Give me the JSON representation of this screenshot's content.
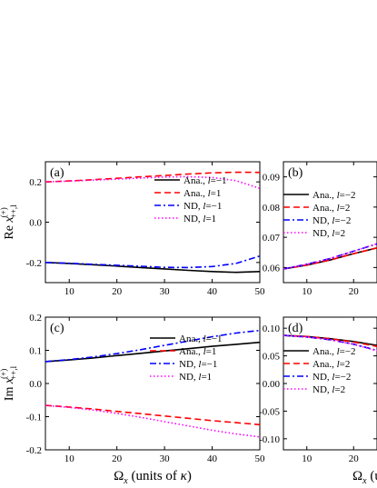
{
  "chart_data": [
    {
      "panel": "(a)",
      "type": "line",
      "ylabel": "Re x",
      "ylabel_sup": "(+)",
      "ylabel_sub": "++,l",
      "xlabel": "",
      "xlim": [
        5,
        50
      ],
      "ylim": [
        -0.3,
        0.3
      ],
      "xticks": [
        "10",
        "20",
        "30",
        "40",
        "50"
      ],
      "xtick_values": [
        10,
        20,
        30,
        40,
        50
      ],
      "yticks": [
        "-0.2",
        "0.0",
        "0.2"
      ],
      "ytick_values": [
        -0.2,
        0.0,
        0.2
      ],
      "legend_placement": "center-right",
      "series": [
        {
          "name": "Ana., l=−1",
          "prefix": "Ana., ",
          "lval": "=−1",
          "color": "#000000",
          "dash": "solid",
          "x": [
            5,
            10,
            15,
            20,
            25,
            30,
            35,
            40,
            45,
            50
          ],
          "y": [
            -0.2,
            -0.205,
            -0.211,
            -0.218,
            -0.225,
            -0.232,
            -0.239,
            -0.245,
            -0.249,
            -0.245
          ]
        },
        {
          "name": "Ana., l=1",
          "prefix": "Ana., ",
          "lval": "=1",
          "color": "#ff0000",
          "dash": "dashed",
          "x": [
            5,
            10,
            15,
            20,
            25,
            30,
            35,
            40,
            45,
            50
          ],
          "y": [
            0.2,
            0.205,
            0.211,
            0.218,
            0.225,
            0.232,
            0.239,
            0.245,
            0.248,
            0.247
          ]
        },
        {
          "name": "ND, l=−1",
          "prefix": "ND, ",
          "lval": "=−1",
          "color": "#0000ff",
          "dash": "dashdot",
          "x": [
            5,
            10,
            15,
            20,
            25,
            30,
            35,
            40,
            45,
            50
          ],
          "y": [
            -0.2,
            -0.204,
            -0.209,
            -0.214,
            -0.219,
            -0.224,
            -0.225,
            -0.22,
            -0.205,
            -0.168
          ]
        },
        {
          "name": "ND, l=1",
          "prefix": "ND, ",
          "lval": "=1",
          "color": "#ff00ff",
          "dash": "dotted",
          "x": [
            5,
            10,
            15,
            20,
            25,
            30,
            35,
            40,
            45,
            50
          ],
          "y": [
            0.2,
            0.204,
            0.209,
            0.214,
            0.219,
            0.224,
            0.226,
            0.222,
            0.206,
            0.168
          ]
        }
      ]
    },
    {
      "panel": "(b)",
      "type": "line",
      "xlabel": "",
      "xlim": [
        5,
        25
      ],
      "ylim": [
        0.055,
        0.095
      ],
      "xticks": [
        "10",
        "20"
      ],
      "xtick_values": [
        10,
        20
      ],
      "yticks": [
        "0.06",
        "0.07",
        "0.08",
        "0.09"
      ],
      "ytick_values": [
        0.06,
        0.07,
        0.08,
        0.09
      ],
      "legend_placement": "center-right",
      "series": [
        {
          "name": "Ana., l=−2",
          "prefix": "Ana., ",
          "lval": "=−2",
          "color": "#000000",
          "dash": "solid",
          "x": [
            5,
            10,
            15,
            20,
            25
          ],
          "y": [
            0.0595,
            0.0608,
            0.0625,
            0.0646,
            0.0665
          ]
        },
        {
          "name": "Ana., l=2",
          "prefix": "Ana., ",
          "lval": "=2",
          "color": "#ff0000",
          "dash": "dashed",
          "x": [
            5,
            10,
            15,
            20,
            25
          ],
          "y": [
            0.0595,
            0.0608,
            0.0625,
            0.0646,
            0.0665
          ]
        },
        {
          "name": "ND, l=−2",
          "prefix": "ND, ",
          "lval": "=−2",
          "color": "#0000ff",
          "dash": "dashdot",
          "x": [
            5,
            10,
            15,
            20,
            25
          ],
          "y": [
            0.0595,
            0.0611,
            0.063,
            0.0654,
            0.0678
          ]
        },
        {
          "name": "ND, l=2",
          "prefix": "ND, ",
          "lval": "=2",
          "color": "#ff00ff",
          "dash": "dotted",
          "x": [
            5,
            10,
            15,
            20,
            25
          ],
          "y": [
            0.0595,
            0.0611,
            0.063,
            0.0654,
            0.0679
          ]
        }
      ]
    },
    {
      "panel": "(c)",
      "type": "line",
      "ylabel": "Im x",
      "ylabel_sup": "(+)",
      "ylabel_sub": "++,l",
      "xlabel": "Ω",
      "xlabel_sub": "x",
      "xlabel_units": " (units of ",
      "xlabel_kappa": "κ",
      "xlabel_close": ")",
      "xlim": [
        5,
        50
      ],
      "ylim": [
        -0.2,
        0.2
      ],
      "xticks": [
        "10",
        "20",
        "30",
        "40",
        "50"
      ],
      "xtick_values": [
        10,
        20,
        30,
        40,
        50
      ],
      "yticks": [
        "-0.2",
        "-0.1",
        "0.0",
        "0.1",
        "0.2"
      ],
      "ytick_values": [
        -0.2,
        -0.1,
        0.0,
        0.1,
        0.2
      ],
      "legend_placement": "center-right",
      "series": [
        {
          "name": "Ana., l=−1",
          "prefix": "Ana., ",
          "lval": "=−1",
          "color": "#000000",
          "dash": "solid",
          "x": [
            5,
            10,
            15,
            20,
            25,
            30,
            35,
            40,
            45,
            50
          ],
          "y": [
            0.066,
            0.071,
            0.077,
            0.084,
            0.091,
            0.098,
            0.105,
            0.112,
            0.118,
            0.124
          ]
        },
        {
          "name": "Ana., l=1",
          "prefix": "Ana., ",
          "lval": "=1",
          "color": "#ff0000",
          "dash": "dashed",
          "x": [
            5,
            10,
            15,
            20,
            25,
            30,
            35,
            40,
            45,
            50
          ],
          "y": [
            -0.066,
            -0.071,
            -0.077,
            -0.084,
            -0.091,
            -0.098,
            -0.105,
            -0.112,
            -0.118,
            -0.124
          ]
        },
        {
          "name": "ND, l=−1",
          "prefix": "ND, ",
          "lval": "=−1",
          "color": "#0000ff",
          "dash": "dashdot",
          "x": [
            5,
            10,
            15,
            20,
            25,
            30,
            35,
            40,
            45,
            50
          ],
          "y": [
            0.066,
            0.072,
            0.08,
            0.09,
            0.102,
            0.115,
            0.128,
            0.141,
            0.152,
            0.16
          ]
        },
        {
          "name": "ND, l=1",
          "prefix": "ND, ",
          "lval": "=1",
          "color": "#ff00ff",
          "dash": "dotted",
          "x": [
            5,
            10,
            15,
            20,
            25,
            30,
            35,
            40,
            45,
            50
          ],
          "y": [
            -0.066,
            -0.072,
            -0.08,
            -0.09,
            -0.102,
            -0.115,
            -0.128,
            -0.141,
            -0.152,
            -0.161
          ]
        }
      ]
    },
    {
      "panel": "(d)",
      "type": "line",
      "xlabel": "Ω",
      "xlabel_sub": "x",
      "xlabel_units": " (u",
      "xlim": [
        5,
        25
      ],
      "ylim": [
        -0.12,
        0.12
      ],
      "xticks": [
        "10",
        "20"
      ],
      "xtick_values": [
        10,
        20
      ],
      "yticks": [
        "-0.10",
        "-0.05",
        "0.00",
        "0.05",
        "0.10"
      ],
      "ytick_values": [
        -0.1,
        -0.05,
        0.0,
        0.05,
        0.1
      ],
      "legend_placement": "center-right",
      "series": [
        {
          "name": "Ana., l=−2",
          "prefix": "Ana., ",
          "lval": "=−2",
          "color": "#000000",
          "dash": "solid",
          "x": [
            5,
            10,
            15,
            20,
            25
          ],
          "y": [
            0.087,
            0.085,
            0.081,
            0.076,
            0.069
          ]
        },
        {
          "name": "Ana., l=2",
          "prefix": "Ana., ",
          "lval": "=2",
          "color": "#ff0000",
          "dash": "dashed",
          "x": [
            5,
            10,
            15,
            20,
            25
          ],
          "y": [
            0.087,
            0.085,
            0.081,
            0.075,
            0.067
          ]
        },
        {
          "name": "ND, l=−2",
          "prefix": "ND, ",
          "lval": "=−2",
          "color": "#0000ff",
          "dash": "dashdot",
          "x": [
            5,
            10,
            15,
            20,
            25
          ],
          "y": [
            0.087,
            0.084,
            0.079,
            0.071,
            0.06
          ]
        },
        {
          "name": "ND, l=2",
          "prefix": "ND, ",
          "lval": "=2",
          "color": "#ff00ff",
          "dash": "dotted",
          "x": [
            5,
            10,
            15,
            20,
            25
          ],
          "y": [
            0.087,
            0.084,
            0.079,
            0.071,
            0.059
          ]
        }
      ]
    }
  ]
}
